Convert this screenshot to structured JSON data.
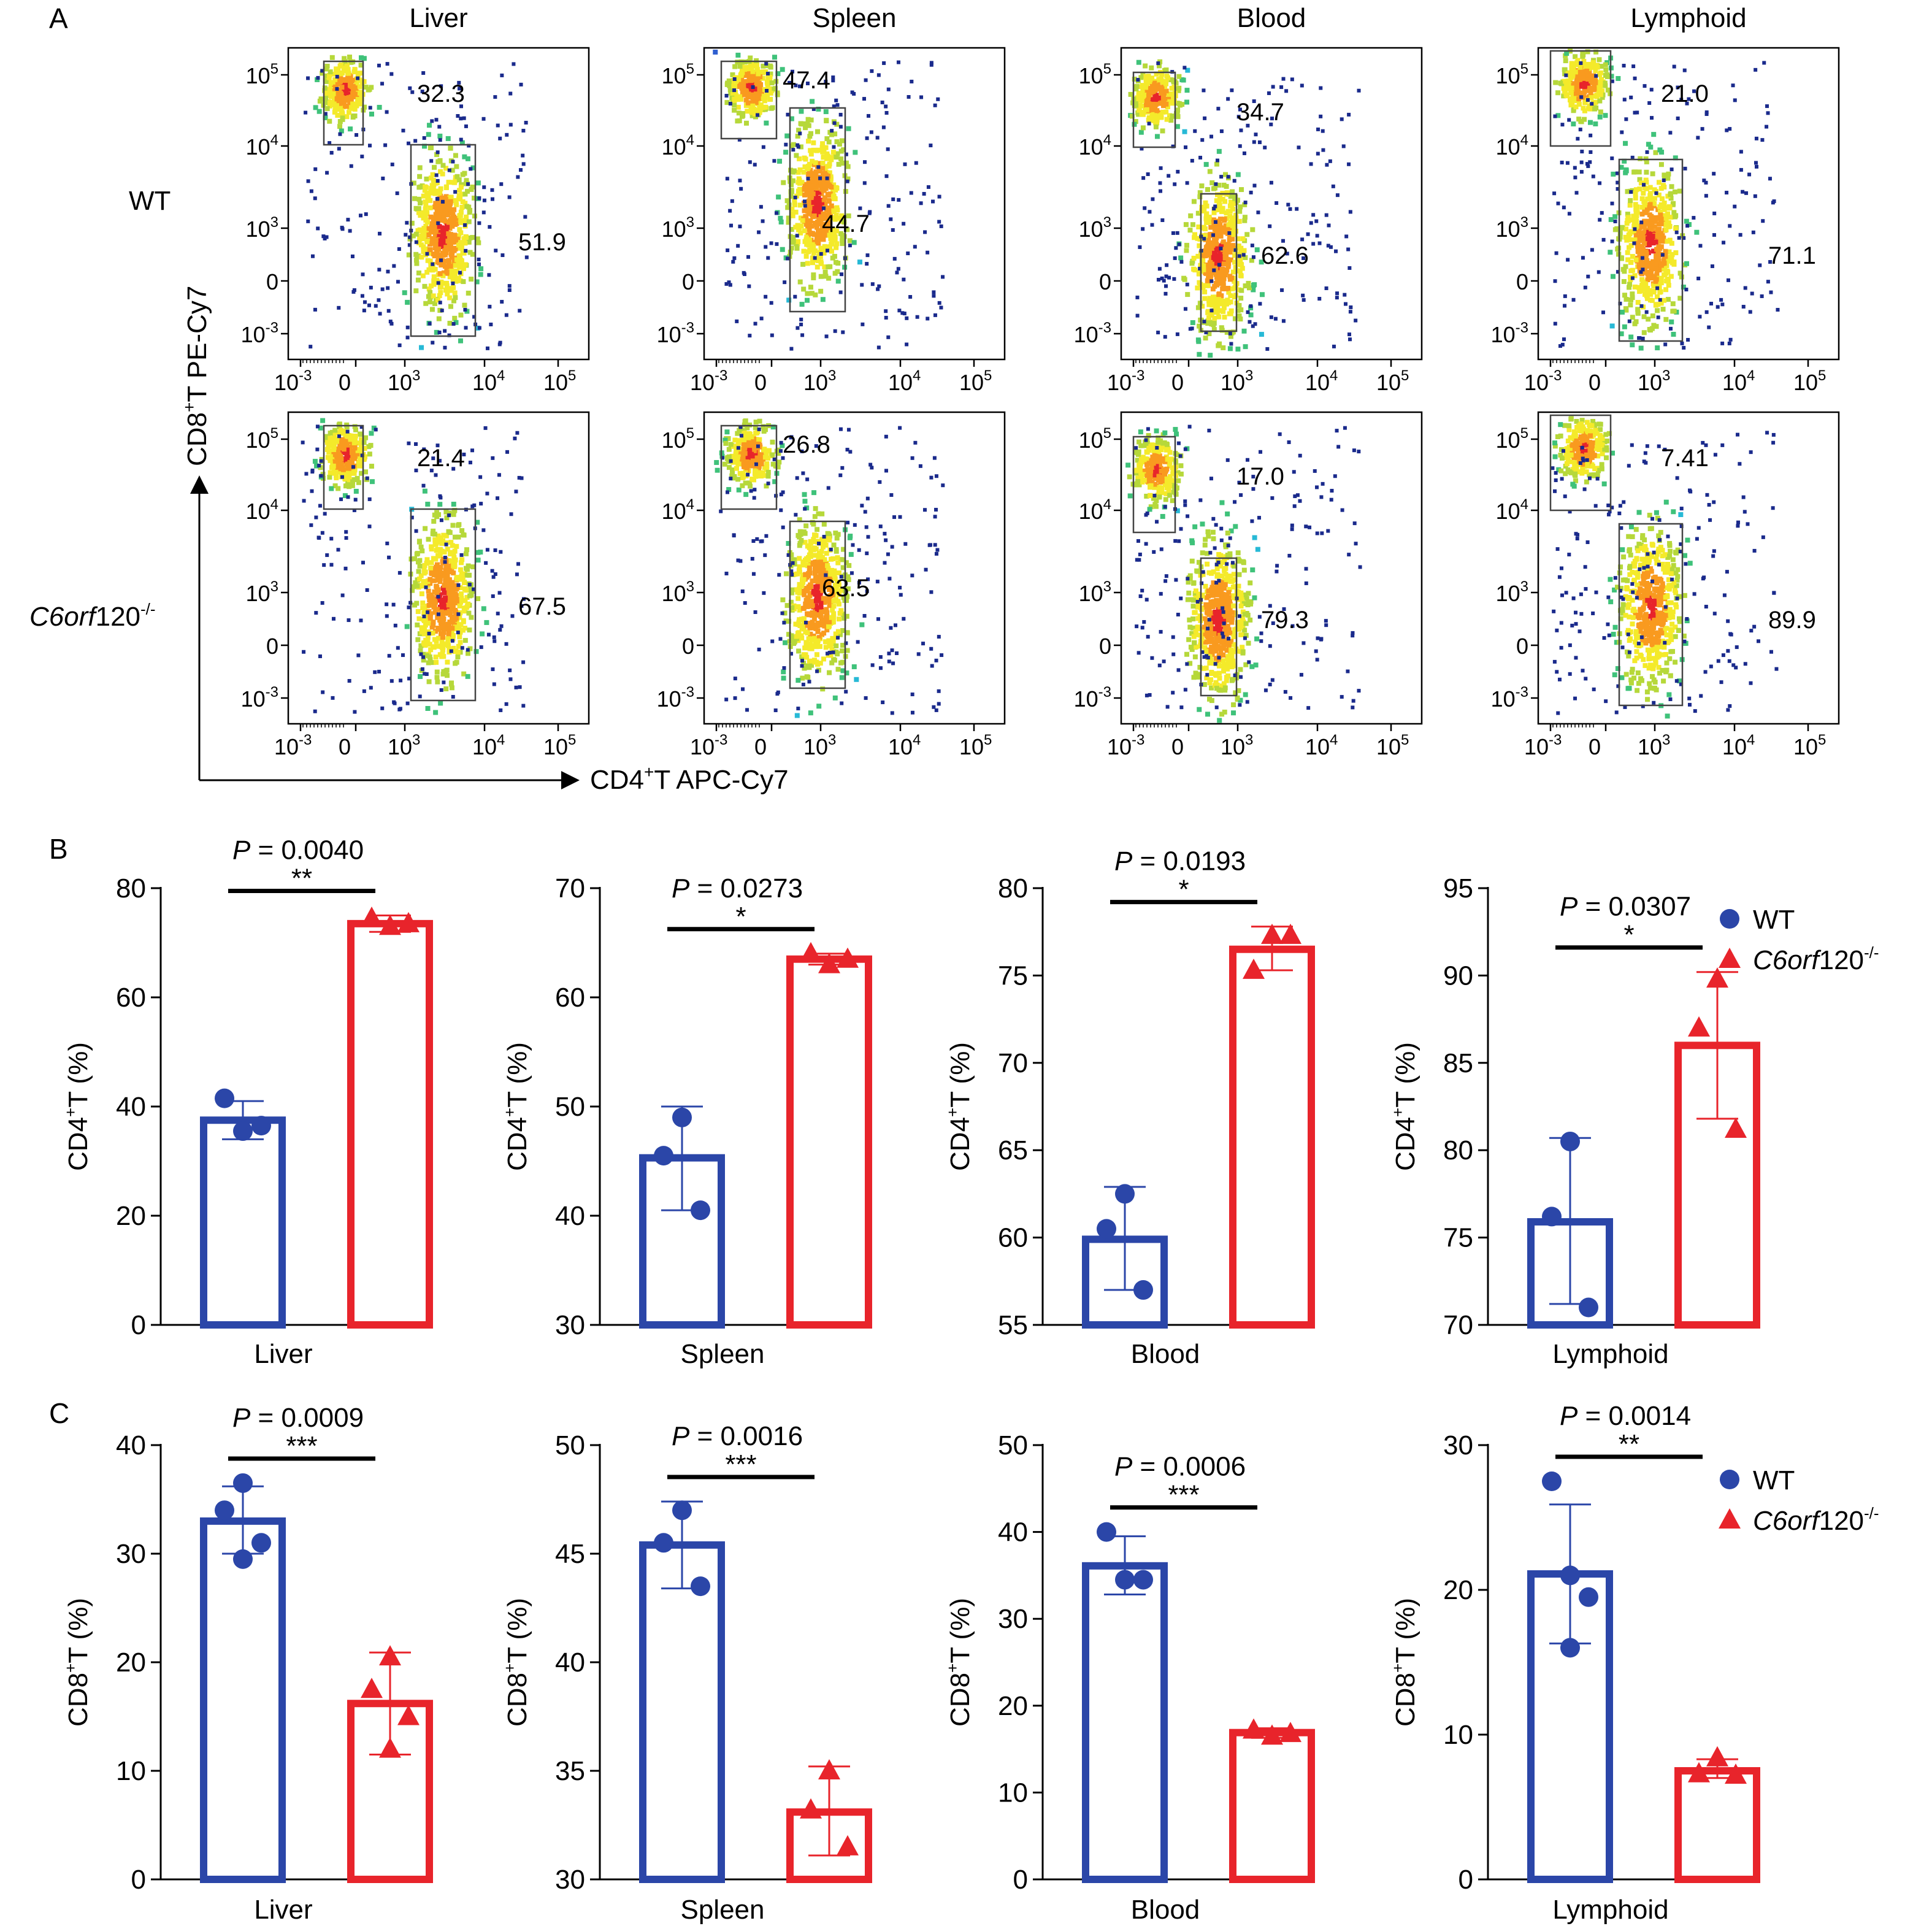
{
  "panel_labels": [
    "A",
    "B",
    "C"
  ],
  "panel_a": {
    "tissues": [
      "Liver",
      "Spleen",
      "Blood",
      "Lymphoid"
    ],
    "rows": [
      {
        "label": "WT",
        "label_italic": "",
        "label_sup": ""
      },
      {
        "label": "120",
        "label_italic": "C6orf",
        "label_sup": "-/-"
      }
    ],
    "y_axis_label": {
      "pre": "CD8",
      "sup": "+",
      "post": "T PE-Cy7"
    },
    "x_axis_label": {
      "pre": "CD4",
      "sup": "+",
      "post": "T APC-Cy7"
    },
    "tick_labels": [
      {
        "base": "10",
        "exp": "-3"
      },
      {
        "base": "0",
        "exp": ""
      },
      {
        "base": "10",
        "exp": "3"
      },
      {
        "base": "10",
        "exp": "4"
      },
      {
        "base": "10",
        "exp": "5"
      }
    ],
    "gate_values": [
      [
        [
          "32.3",
          "51.9"
        ],
        [
          "47.4",
          "44.7"
        ],
        [
          "34.7",
          "62.6"
        ],
        [
          "21.0",
          "71.1"
        ]
      ],
      [
        [
          "21.4",
          "67.5"
        ],
        [
          "26.8",
          "63.5"
        ],
        [
          "17.0",
          "79.3"
        ],
        [
          "7.41",
          "89.9"
        ]
      ]
    ]
  },
  "legend": {
    "wt_label": "WT",
    "ko_label_italic": "C6orf",
    "ko_label_rest": "120",
    "ko_label_sup": "-/-"
  },
  "colors": {
    "wt": "#2b46a8",
    "ko": "#e8242b",
    "heat": [
      "#1a2a8c",
      "#2f5fd0",
      "#27b9d6",
      "#3fc27a",
      "#b6d83a",
      "#f4ea2a",
      "#f99a1f",
      "#e8242b"
    ]
  },
  "chart_data": [
    {
      "type": "bar",
      "panel": "B",
      "title": "",
      "xlabel": "Liver",
      "ylabel": {
        "pre": "CD4",
        "sup": "+",
        "post": "T (%)"
      },
      "ylim": [
        0,
        80
      ],
      "yticks": [
        0,
        20,
        40,
        60,
        80
      ],
      "series": [
        {
          "name": "WT",
          "mean": 37.5,
          "err": [
            34.0,
            41.0
          ],
          "points": [
            35.5,
            41.5,
            36.5
          ]
        },
        {
          "name": "C6orf120-/-",
          "mean": 73.5,
          "err": [
            72.0,
            75.0
          ],
          "points": [
            73.0,
            74.5,
            73.5
          ]
        }
      ],
      "p_value": "P = 0.0040",
      "significance": "**"
    },
    {
      "type": "bar",
      "panel": "B",
      "title": "",
      "xlabel": "Spleen",
      "ylabel": {
        "pre": "CD4",
        "sup": "+",
        "post": "T (%)"
      },
      "ylim": [
        30,
        70
      ],
      "yticks": [
        30,
        40,
        50,
        60,
        70
      ],
      "series": [
        {
          "name": "WT",
          "mean": 45.3,
          "err": [
            40.5,
            50.0
          ],
          "points": [
            49.0,
            45.5,
            40.5
          ]
        },
        {
          "name": "C6orf120-/-",
          "mean": 63.5,
          "err": [
            63.0,
            64.0
          ],
          "points": [
            63.0,
            64.0,
            63.5
          ]
        }
      ],
      "p_value": "P = 0.0273",
      "significance": "*"
    },
    {
      "type": "bar",
      "panel": "B",
      "title": "",
      "xlabel": "Blood",
      "ylabel": {
        "pre": "CD4",
        "sup": "+",
        "post": "T (%)"
      },
      "ylim": [
        55,
        80
      ],
      "yticks": [
        55,
        60,
        65,
        70,
        75,
        80
      ],
      "series": [
        {
          "name": "WT",
          "mean": 59.9,
          "err": [
            57.0,
            62.9
          ],
          "points": [
            62.5,
            60.5,
            57.0
          ]
        },
        {
          "name": "C6orf120-/-",
          "mean": 76.5,
          "err": [
            75.3,
            77.8
          ],
          "points": [
            77.3,
            75.3,
            77.3
          ]
        }
      ],
      "p_value": "P = 0.0193",
      "significance": "*"
    },
    {
      "type": "bar",
      "panel": "B",
      "title": "",
      "xlabel": "Lymphoid",
      "ylabel": {
        "pre": "CD4",
        "sup": "+",
        "post": "T (%)"
      },
      "ylim": [
        70,
        95
      ],
      "yticks": [
        70,
        75,
        80,
        85,
        90,
        95
      ],
      "series": [
        {
          "name": "WT",
          "mean": 75.9,
          "err": [
            71.2,
            80.7
          ],
          "points": [
            80.5,
            76.2,
            71.0
          ]
        },
        {
          "name": "C6orf120-/-",
          "mean": 86.0,
          "err": [
            81.8,
            90.2
          ],
          "points": [
            89.8,
            87.0,
            81.2
          ]
        }
      ],
      "p_value": "P = 0.0307",
      "significance": "*"
    },
    {
      "type": "bar",
      "panel": "C",
      "title": "",
      "xlabel": "Liver",
      "ylabel": {
        "pre": "CD8",
        "sup": "+",
        "post": "T (%)"
      },
      "ylim": [
        0,
        40
      ],
      "yticks": [
        0,
        10,
        20,
        30,
        40
      ],
      "series": [
        {
          "name": "WT",
          "mean": 33.0,
          "err": [
            30.0,
            36.2
          ],
          "points": [
            36.5,
            34.0,
            31.0,
            29.5
          ]
        },
        {
          "name": "C6orf120-/-",
          "mean": 16.2,
          "err": [
            11.5,
            20.9
          ],
          "points": [
            20.5,
            17.5,
            15.0,
            12.0
          ]
        }
      ],
      "p_value": "P = 0.0009",
      "significance": "***"
    },
    {
      "type": "bar",
      "panel": "C",
      "title": "",
      "xlabel": "Spleen",
      "ylabel": {
        "pre": "CD8",
        "sup": "+",
        "post": "T (%)"
      },
      "ylim": [
        30,
        50
      ],
      "yticks": [
        30,
        35,
        40,
        45,
        50
      ],
      "series": [
        {
          "name": "WT",
          "mean": 45.4,
          "err": [
            43.4,
            47.4
          ],
          "points": [
            47.0,
            45.5,
            43.5
          ]
        },
        {
          "name": "C6orf120-/-",
          "mean": 33.1,
          "err": [
            31.1,
            35.2
          ],
          "points": [
            35.0,
            33.2,
            31.5
          ]
        }
      ],
      "p_value": "P = 0.0016",
      "significance": "***"
    },
    {
      "type": "bar",
      "panel": "C",
      "title": "",
      "xlabel": "Blood",
      "ylabel": {
        "pre": "CD8",
        "sup": "+",
        "post": "T (%)"
      },
      "ylim": [
        0,
        50
      ],
      "yticks": [
        0,
        10,
        20,
        30,
        40,
        50
      ],
      "series": [
        {
          "name": "WT",
          "mean": 36.1,
          "err": [
            32.8,
            39.5
          ],
          "points": [
            34.5,
            40.0,
            34.5
          ]
        },
        {
          "name": "C6orf120-/-",
          "mean": 16.9,
          "err": [
            16.3,
            17.4
          ],
          "points": [
            16.5,
            17.2,
            16.8
          ]
        }
      ],
      "p_value": "P = 0.0006",
      "significance": "***"
    },
    {
      "type": "bar",
      "panel": "C",
      "title": "",
      "xlabel": "Lymphoid",
      "ylabel": {
        "pre": "CD8",
        "sup": "+",
        "post": "T (%)"
      },
      "ylim": [
        0,
        30
      ],
      "yticks": [
        0,
        10,
        20,
        30
      ],
      "series": [
        {
          "name": "WT",
          "mean": 21.1,
          "err": [
            16.3,
            25.9
          ],
          "points": [
            21.0,
            27.5,
            19.5,
            16.0
          ]
        },
        {
          "name": "C6orf120-/-",
          "mean": 7.5,
          "err": [
            7.0,
            8.3
          ],
          "points": [
            8.4,
            7.3,
            7.2
          ]
        }
      ],
      "p_value": "P = 0.0014",
      "significance": "**"
    }
  ]
}
